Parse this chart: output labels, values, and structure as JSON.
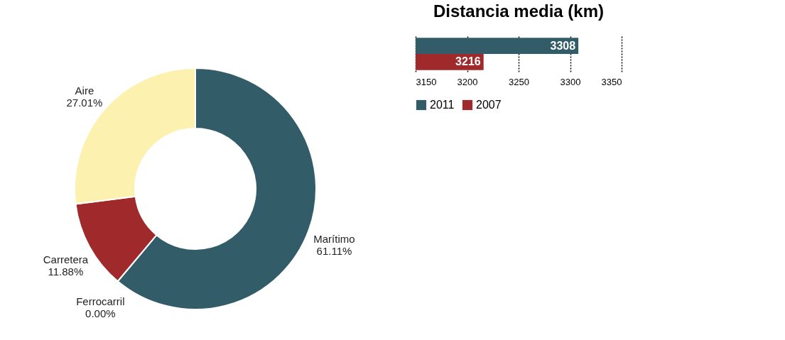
{
  "chart_data": [
    {
      "type": "donut",
      "categories": [
        "Marítimo",
        "Ferrocarril",
        "Carretera",
        "Aire"
      ],
      "values": [
        61.11,
        0.0,
        11.88,
        27.01
      ],
      "value_labels": [
        "61.11%",
        "0.00%",
        "11.88%",
        "27.01%"
      ],
      "colors": [
        "#325d68",
        "#8a8a8a",
        "#a0292c",
        "#fdf1b0"
      ],
      "legend": false
    },
    {
      "type": "bar",
      "orientation": "horizontal",
      "title": "Distancia media (km)",
      "categories": [
        null
      ],
      "series": [
        {
          "name": "2011",
          "color": "#325d68",
          "values": [
            3308
          ]
        },
        {
          "name": "2007",
          "color": "#a0292c",
          "values": [
            3216
          ]
        }
      ],
      "xlim": [
        3150,
        3350
      ],
      "xticks": [
        3150,
        3200,
        3250,
        3300,
        3350
      ],
      "grid": "x",
      "legend": "bottom",
      "data_labels": true
    }
  ]
}
